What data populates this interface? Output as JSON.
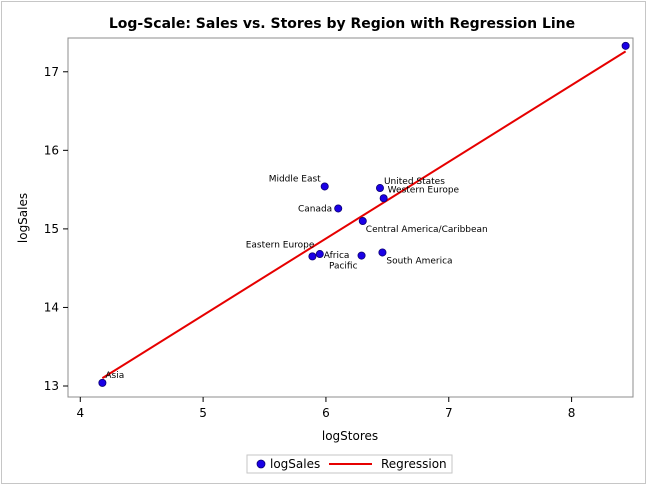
{
  "chart_data": {
    "type": "scatter",
    "title": "Log-Scale: Sales vs. Stores by Region with Regression Line",
    "xlabel": "logStores",
    "ylabel": "logSales",
    "xlim": [
      3.9,
      8.5
    ],
    "ylim": [
      12.86,
      17.43
    ],
    "xticks": [
      4,
      5,
      6,
      7,
      8
    ],
    "yticks": [
      13,
      14,
      15,
      16,
      17
    ],
    "grid": false,
    "legend": {
      "placement": "bottom-center",
      "entries": [
        {
          "label": "logSales",
          "kind": "marker",
          "color": "#1a00e6"
        },
        {
          "label": "Regression",
          "kind": "line",
          "color": "#e60000"
        }
      ]
    },
    "series": [
      {
        "name": "logSales",
        "color": "#1a00e6",
        "points": [
          {
            "label": "Asia",
            "x": 4.18,
            "y": 13.04
          },
          {
            "label": "Middle East",
            "x": 5.99,
            "y": 15.54
          },
          {
            "label": "United States",
            "x": 6.44,
            "y": 15.52
          },
          {
            "label": "Western Europe",
            "x": 6.47,
            "y": 15.39
          },
          {
            "label": "Canada",
            "x": 6.1,
            "y": 15.26
          },
          {
            "label": "Central America/Caribbean",
            "x": 6.3,
            "y": 15.1
          },
          {
            "label": "Eastern Europe",
            "x": 5.89,
            "y": 14.65
          },
          {
            "label": "Africa",
            "x": 5.95,
            "y": 14.68
          },
          {
            "label": "Pacific",
            "x": 6.29,
            "y": 14.66
          },
          {
            "label": "South America",
            "x": 6.46,
            "y": 14.7
          },
          {
            "label": "",
            "x": 8.44,
            "y": 17.33
          }
        ]
      }
    ],
    "regression": {
      "name": "Regression",
      "color": "#e60000",
      "x": [
        4.18,
        8.44
      ],
      "y": [
        13.1,
        17.26
      ]
    }
  }
}
